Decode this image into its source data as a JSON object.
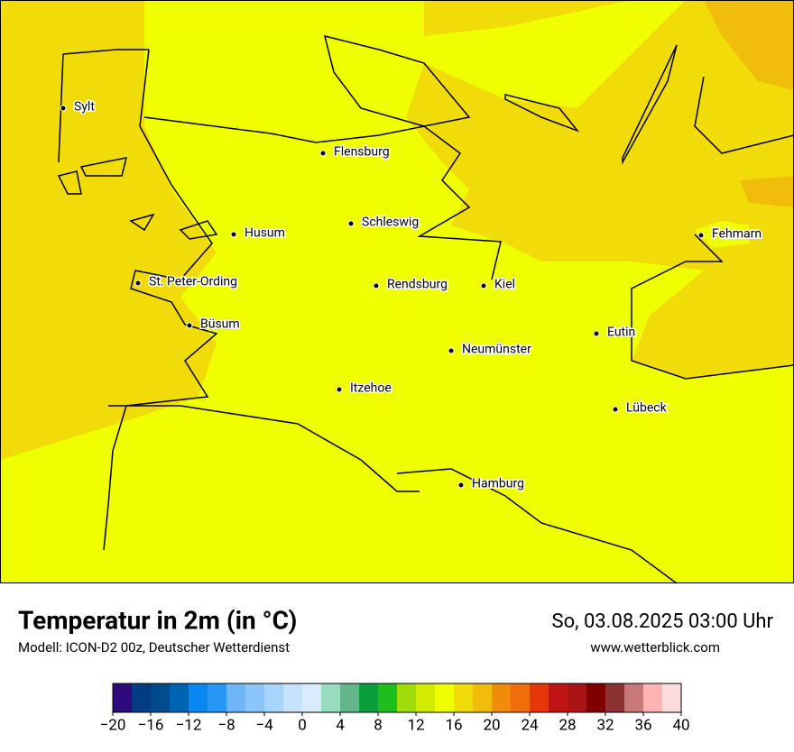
{
  "map": {
    "cities": [
      "Sylt",
      "Flensburg",
      "Schleswig",
      "Husum",
      "Fehmarn",
      "St. Peter-Ording",
      "Rendsburg",
      "Kiel",
      "Büsum",
      "Eutin",
      "Neumünster",
      "Itzehoe",
      "Lübeck",
      "Hamburg"
    ]
  },
  "footer": {
    "title": "Temperatur in 2m (in °C)",
    "source": "Modell: ICON-D2 00z, Deutscher Wetterdienst",
    "datetime": "So, 03.08.2025 03:00 Uhr",
    "website": "www.wetterblick.com"
  },
  "legend": {
    "lim": [
      -20,
      40
    ],
    "colors": [
      "#2e0a7c",
      "#003c82",
      "#004b8c",
      "#0064b4",
      "#0a87f0",
      "#2896f5",
      "#6eb6f8",
      "#8cc5fa",
      "#a6d4fb",
      "#c6e2fc",
      "#d8ecfd",
      "#96dcbe",
      "#64b48c",
      "#0a9e3c",
      "#1ebe1e",
      "#a0dc0a",
      "#d2eb00",
      "#f0ff00",
      "#f0dc0a",
      "#f0be0a",
      "#f08c0a",
      "#f06e0a",
      "#e6370a",
      "#be1414",
      "#aa1414",
      "#800000",
      "#8c3232",
      "#c87878",
      "#ffb4b4",
      "#ffdcdc"
    ],
    "ticks": [
      {
        "value": -20,
        "label": "−20"
      },
      {
        "value": -16,
        "label": "−16"
      },
      {
        "value": -12,
        "label": "−12"
      },
      {
        "value": -8,
        "label": "−8"
      },
      {
        "value": -4,
        "label": "−4"
      },
      0,
      4,
      8,
      12,
      16,
      20,
      24,
      28,
      32,
      36,
      40
    ]
  }
}
